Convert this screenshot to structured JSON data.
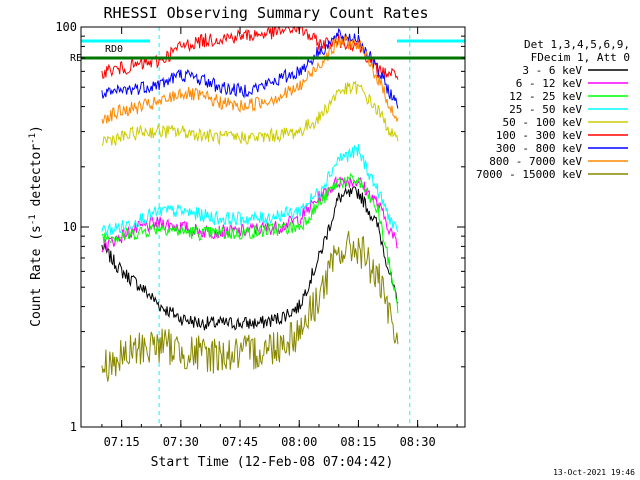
{
  "chart_data": {
    "type": "line",
    "title": "RHESSI Observing Summary Count Rates",
    "xlabel": "Start Time (12-Feb-08 07:04:42)",
    "ylabel_main": "Count Rate (s",
    "ylabel_sup": "-1",
    "ylabel_tail": " detector",
    "ylabel_sup2": "-1",
    "ylabel_close": ")",
    "yscale": "log",
    "ylim": [
      1,
      100
    ],
    "xlim": [
      "07:04:42",
      "08:42:00"
    ],
    "x_ticks": [
      "07:15",
      "07:30",
      "07:45",
      "08:00",
      "08:15",
      "08:30"
    ],
    "y_ticks": [
      "1",
      "10",
      "100"
    ],
    "legend_header": [
      "Det 1,3,4,5,6,9,",
      "FDecim 1, Att 0"
    ],
    "legend_placement": "right",
    "flag_labels": [
      "RD0",
      "RE"
    ],
    "timestamp": "13-Oct-2021 19:46",
    "night_intervals": [
      [
        "07:04:42",
        "07:24:30"
      ],
      [
        "08:28:00",
        "08:42:00"
      ]
    ],
    "series": [
      {
        "name": "3 - 6 keV",
        "color": "#000000",
        "x": [
          "07:10",
          "07:15",
          "07:20",
          "07:25",
          "07:30",
          "07:35",
          "07:40",
          "07:45",
          "07:50",
          "07:55",
          "08:00",
          "08:05",
          "08:10",
          "08:15",
          "08:20",
          "08:25"
        ],
        "y": [
          8,
          6,
          5,
          4,
          3.5,
          3.3,
          3.3,
          3.3,
          3.3,
          3.5,
          4,
          7,
          14,
          15,
          10,
          4
        ]
      },
      {
        "name": "6 - 12 keV",
        "color": "#ff00ff",
        "x": [
          "07:10",
          "07:15",
          "07:20",
          "07:25",
          "07:30",
          "07:35",
          "07:40",
          "07:45",
          "07:50",
          "07:55",
          "08:00",
          "08:05",
          "08:10",
          "08:15",
          "08:20",
          "08:25"
        ],
        "y": [
          8,
          9,
          10,
          10.5,
          10,
          9.5,
          9.5,
          9.5,
          9.8,
          10,
          11,
          14,
          17,
          17,
          13,
          8
        ]
      },
      {
        "name": "12 - 25 keV",
        "color": "#00ff00",
        "x": [
          "07:10",
          "07:15",
          "07:20",
          "07:25",
          "07:30",
          "07:35",
          "07:40",
          "07:45",
          "07:50",
          "07:55",
          "08:00",
          "08:05",
          "08:10",
          "08:15",
          "08:20",
          "08:25"
        ],
        "y": [
          9,
          9,
          9.5,
          10,
          9.5,
          9.3,
          9.3,
          9.3,
          9.5,
          9.8,
          10,
          13,
          17,
          17,
          12,
          4
        ]
      },
      {
        "name": "25 - 50 keV",
        "color": "#00ffff",
        "x": [
          "07:10",
          "07:15",
          "07:20",
          "07:25",
          "07:30",
          "07:35",
          "07:40",
          "07:45",
          "07:50",
          "07:55",
          "08:00",
          "08:05",
          "08:10",
          "08:15",
          "08:20",
          "08:25"
        ],
        "y": [
          9.5,
          10,
          11,
          12,
          12,
          11.5,
          11,
          11,
          11,
          11.5,
          12,
          15,
          22,
          24,
          15,
          9
        ]
      },
      {
        "name": "50 - 100 keV",
        "color": "#cccc00",
        "x": [
          "07:10",
          "07:15",
          "07:20",
          "07:25",
          "07:30",
          "07:35",
          "07:40",
          "07:45",
          "07:50",
          "07:55",
          "08:00",
          "08:05",
          "08:10",
          "08:15",
          "08:20",
          "08:25"
        ],
        "y": [
          27,
          28,
          30,
          30,
          30,
          29,
          28,
          28,
          28,
          29,
          30,
          35,
          48,
          50,
          38,
          26
        ]
      },
      {
        "name": "100 - 300 keV",
        "color": "#ff0000",
        "x": [
          "07:10",
          "07:15",
          "07:20",
          "07:25",
          "07:30",
          "07:35",
          "07:40",
          "07:45",
          "07:50",
          "07:55",
          "08:00",
          "08:05",
          "08:10",
          "08:15",
          "08:20",
          "08:25"
        ],
        "y": [
          60,
          62,
          65,
          68,
          80,
          85,
          88,
          90,
          92,
          95,
          100,
          82,
          85,
          82,
          60,
          58
        ]
      },
      {
        "name": "300 - 800 keV",
        "color": "#0000ff",
        "x": [
          "07:10",
          "07:15",
          "07:20",
          "07:25",
          "07:30",
          "07:35",
          "07:40",
          "07:45",
          "07:50",
          "07:55",
          "08:00",
          "08:05",
          "08:10",
          "08:15",
          "08:20",
          "08:25"
        ],
        "y": [
          45,
          48,
          50,
          52,
          58,
          55,
          50,
          48,
          50,
          55,
          60,
          75,
          90,
          88,
          60,
          40
        ]
      },
      {
        "name": "800 - 7000 keV",
        "color": "#ff8800",
        "x": [
          "07:10",
          "07:15",
          "07:20",
          "07:25",
          "07:30",
          "07:35",
          "07:40",
          "07:45",
          "07:50",
          "07:55",
          "08:00",
          "08:05",
          "08:10",
          "08:15",
          "08:20",
          "08:25"
        ],
        "y": [
          35,
          38,
          40,
          42,
          47,
          45,
          42,
          40,
          42,
          45,
          50,
          65,
          85,
          82,
          55,
          33
        ]
      },
      {
        "name": "7000 - 15000 keV",
        "color": "#888800",
        "x": [
          "07:10",
          "07:15",
          "07:20",
          "07:25",
          "07:30",
          "07:35",
          "07:40",
          "07:45",
          "07:50",
          "07:55",
          "08:00",
          "08:05",
          "08:10",
          "08:15",
          "08:20",
          "08:25"
        ],
        "y": [
          2,
          2.2,
          2.5,
          2.6,
          2.4,
          2.3,
          2.3,
          2.3,
          2.4,
          2.6,
          3,
          4.5,
          7.5,
          8,
          5.5,
          2.5
        ]
      }
    ]
  }
}
